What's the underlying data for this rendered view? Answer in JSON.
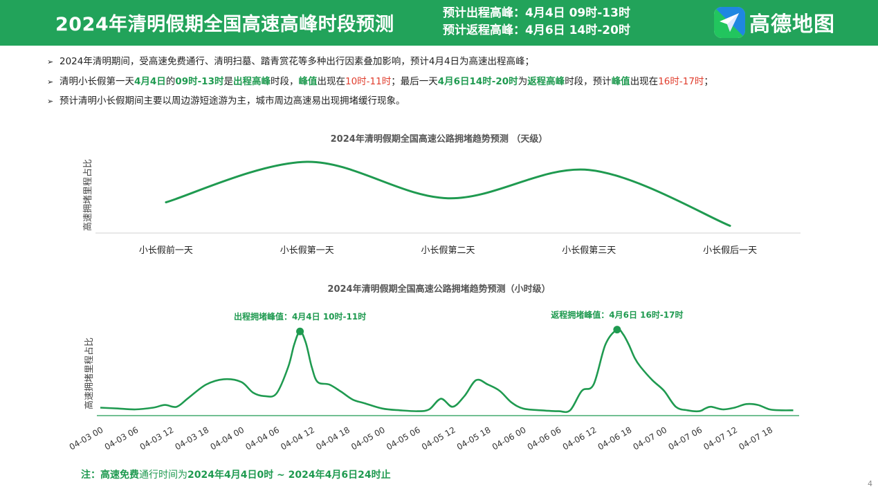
{
  "header": {
    "title": "2024年清明假期全国高速高峰时段预测",
    "outbound_peak": "预计出程高峰：4月4日 09时-13时",
    "return_peak": "预计返程高峰：4月6日 14时-20时",
    "logo_text": "高德地图",
    "colors": {
      "brand": "#22a35a",
      "accent_green": "#1f9a50",
      "accent_red": "#e03c2c",
      "logo_blue": "#1f7ff0"
    }
  },
  "bullets": {
    "b1": "2024年清明期间，受高速免费通行、清明扫墓、踏青赏花等多种出行因素叠加影响，预计4月4日为高速出程高峰；",
    "b2": {
      "t1": "清明小长假第一天",
      "t2": "4月4日",
      "t3": "的",
      "t4": "09时-13时",
      "t5": "是",
      "t6": "出程高峰",
      "t7": "时段，",
      "t8": "峰值",
      "t9": "出现在",
      "t10": "10时-11时",
      "t11": "；最后一天",
      "t12": "4月6日14时-20时",
      "t13": "为",
      "t14": "返程高峰",
      "t15": "时段，预计",
      "t16": "峰值",
      "t17": "出现在",
      "t18": "16时-17时",
      "t19": "；"
    },
    "b3": "预计清明小长假期间主要以周边游短途游为主，城市周边高速易出现拥堵缓行现象。"
  },
  "chart_data": [
    {
      "type": "line",
      "title": "2024年清明假期全国高速公路拥堵趋势预测 （天级）",
      "ylabel": "高速拥堵里程占比",
      "categories": [
        "小长假前一天",
        "小长假第一天",
        "小长假第二天",
        "小长假第三天",
        "小长假后一天"
      ],
      "values": [
        0.38,
        0.88,
        0.43,
        0.78,
        0.09
      ],
      "ylim": [
        0,
        1
      ],
      "color": "#1f9a50",
      "grid": false,
      "legend": "none"
    },
    {
      "type": "line",
      "title": "2024年清明假期全国高速公路拥堵趋势预测（小时级）",
      "ylabel": "高速拥堵里程占比",
      "tick_labels": [
        "04-03 00",
        "04-03 06",
        "04-03 12",
        "04-03 18",
        "04-04 00",
        "04-04 06",
        "04-04 12",
        "04-04 18",
        "04-05 00",
        "04-05 06",
        "04-05 12",
        "04-05 18",
        "04-06 00",
        "04-06 06",
        "04-06 12",
        "04-06 18",
        "04-07 00",
        "04-07 06",
        "04-07 12",
        "04-07 18"
      ],
      "tick_hours": [
        0,
        6,
        12,
        18,
        24,
        30,
        36,
        42,
        48,
        54,
        60,
        66,
        72,
        78,
        84,
        90,
        96,
        102,
        108,
        114
      ],
      "x_hours": [
        0,
        3,
        6,
        9,
        11,
        13,
        15,
        18,
        21,
        24,
        26,
        28,
        30,
        32,
        33,
        34,
        35,
        36,
        37,
        39,
        41,
        43,
        45,
        48,
        51,
        54,
        56,
        58,
        60,
        62,
        64,
        66,
        68,
        70,
        72,
        75,
        78,
        80,
        82,
        84,
        86,
        88,
        89,
        90,
        91,
        92,
        94,
        96,
        98,
        100,
        102,
        103,
        104,
        106,
        108,
        110,
        112,
        114,
        116,
        118
      ],
      "values": [
        0.09,
        0.08,
        0.07,
        0.09,
        0.12,
        0.1,
        0.2,
        0.35,
        0.41,
        0.38,
        0.26,
        0.22,
        0.25,
        0.55,
        0.8,
        0.95,
        0.82,
        0.55,
        0.38,
        0.35,
        0.27,
        0.18,
        0.14,
        0.08,
        0.06,
        0.05,
        0.07,
        0.19,
        0.1,
        0.22,
        0.4,
        0.35,
        0.28,
        0.15,
        0.08,
        0.06,
        0.05,
        0.06,
        0.28,
        0.35,
        0.8,
        0.97,
        0.92,
        0.8,
        0.65,
        0.55,
        0.4,
        0.28,
        0.1,
        0.06,
        0.05,
        0.08,
        0.1,
        0.07,
        0.09,
        0.13,
        0.12,
        0.07,
        0.06,
        0.06
      ],
      "ylim": [
        0,
        1.1
      ],
      "color": "#1f9a50",
      "annotations": [
        {
          "hour": 34,
          "value": 0.95,
          "label": "出程拥堵峰值：4月4日 10时-11时"
        },
        {
          "hour": 88,
          "value": 0.97,
          "label": "返程拥堵峰值：4月6日 16时-17时"
        }
      ],
      "grid": false,
      "legend": "none"
    }
  ],
  "note": {
    "prefix": "注：",
    "free": "高速免费",
    "mid": "通行时间为",
    "range": "2024年4月4日0时 ~ 2024年4月6日24时止"
  },
  "page_number": "4"
}
